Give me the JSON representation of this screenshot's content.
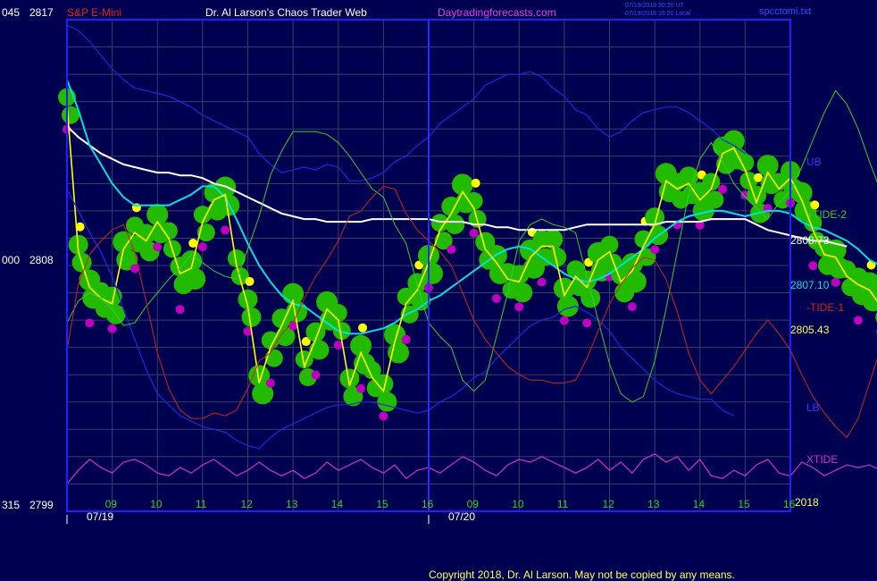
{
  "header": {
    "left_value_top": "045",
    "price_top": "2817",
    "symbol": "S&P E-Mini",
    "site": "Dr. Al Larson's Chaos Trader Web",
    "url": "Daytradingforecasts.com",
    "timestamp_ut": "07/19/2018 20:20 UT",
    "timestamp_local": "07/19/2018 16:20 Local",
    "file": "spcctomi.txt"
  },
  "footer": {
    "copyright": "Copyright 2018, Dr. Al Larson. May not be copied by any means.",
    "year": "2018"
  },
  "axis": {
    "left_mid_value": "000",
    "price_mid": "2808",
    "left_bottom_value": "315",
    "price_bottom": "2799",
    "hour_labels": [
      "09",
      "10",
      "11",
      "12",
      "13",
      "14",
      "15",
      "16",
      "09",
      "10",
      "11",
      "12",
      "13",
      "14",
      "15",
      "16"
    ],
    "date_labels": [
      "07/19",
      "07/20"
    ]
  },
  "labels": {
    "ub": "UB",
    "lb": "LB",
    "tide2": "+TIDE-2",
    "tide1": "-TIDE-1",
    "xtide": "XTIDE",
    "val_white": "2808.73",
    "val_cyan": "2807.10",
    "val_yellow": "2805.43"
  },
  "colors": {
    "background": "#000050",
    "frame": "#2020ff",
    "grid": "#3c3c6a",
    "price": "#ffff00",
    "avg_fast": "#00e0e0",
    "avg_slow": "#ffffff",
    "band": "#1a2adc",
    "tide_green": "#30d030",
    "tide_red": "#d02020",
    "xtide": "#d030d0",
    "dots_green": "#22bb00",
    "dots_magenta": "#c000c0",
    "dots_yellow": "#ffff00"
  },
  "chart_data": {
    "type": "line",
    "title": "S&P E-Mini",
    "ylim": [
      2799,
      2817
    ],
    "yticks": [
      2799,
      2808,
      2817
    ],
    "x_hour_ticks": [
      9,
      10,
      11,
      12,
      13,
      14,
      15,
      16,
      9,
      10,
      11,
      12,
      13,
      14,
      15,
      16
    ],
    "x_dates": [
      "07/19",
      "07/20"
    ],
    "time_step_hours": 0.25,
    "series": [
      {
        "name": "price",
        "color": "yellow",
        "start": "07/19 09:00",
        "values": [
          2813.9,
          2808.5,
          2807.2,
          2806.8,
          2806.6,
          2808.6,
          2809.2,
          2808.9,
          2809.6,
          2809.0,
          2807.7,
          2807.9,
          2809.6,
          2810.4,
          2810.6,
          2808.0,
          2806.5,
          2803.7,
          2805.0,
          2805.8,
          2806.7,
          2804.3,
          2805.3,
          2806.4,
          2806.0,
          2803.6,
          2804.8,
          2803.9,
          2803.4,
          2805.2,
          2806.6,
          2807.1,
          2808.1,
          2809.3,
          2809.9,
          2810.7,
          2810.1,
          2808.6,
          2808.1,
          2807.5,
          2807.4,
          2808.3,
          2808.7,
          2808.7,
          2806.9,
          2807.6,
          2807.2,
          2808.2,
          2808.5,
          2807.4,
          2807.8,
          2808.7,
          2809.5,
          2811.1,
          2810.8,
          2811.0,
          2810.4,
          2810.8,
          2812.1,
          2812.3,
          2811.5,
          2810.3,
          2811.4,
          2810.8,
          2811.2,
          2810.4,
          2809.3,
          2808.4,
          2808.3,
          2807.6,
          2807.3,
          2807.1,
          2806.5,
          2806.5,
          2807.5,
          2806.2,
          2805.8,
          2805.1,
          2806.5,
          2806.3,
          2805.4,
          2805.6,
          2805.3,
          2805.4
        ]
      },
      {
        "name": "fast average",
        "color": "cyan",
        "start": "07/19 09:00",
        "values": [
          2814.8,
          2813.7,
          2812.4,
          2811.7,
          2811.0,
          2810.5,
          2810.2,
          2810.2,
          2810.2,
          2810.2,
          2810.4,
          2810.6,
          2810.9,
          2810.9,
          2810.5,
          2809.7,
          2808.8,
          2808.0,
          2807.4,
          2806.9,
          2806.6,
          2806.5,
          2806.2,
          2805.9,
          2805.6,
          2805.5,
          2805.5,
          2805.6,
          2805.7,
          2805.9,
          2806.2,
          2806.4,
          2806.7,
          2806.9,
          2807.2,
          2807.5,
          2807.8,
          2808.1,
          2808.4,
          2808.6,
          2808.7,
          2808.6,
          2808.3,
          2808.0,
          2807.7,
          2807.5,
          2807.4,
          2807.5,
          2807.7,
          2808.0,
          2808.3,
          2808.6,
          2809.0,
          2809.3,
          2809.6,
          2809.8,
          2809.9,
          2810.0,
          2810.0,
          2809.9,
          2809.8,
          2809.9,
          2810.0,
          2810.0,
          2809.9,
          2809.6,
          2809.4,
          2809.3,
          2809.1,
          2808.9,
          2808.6,
          2808.2,
          2808.0,
          2807.6,
          2807.4,
          2807.1
        ]
      },
      {
        "name": "slow average",
        "color": "white",
        "start": "07/19 09:00",
        "values": [
          2813.1,
          2812.7,
          2812.4,
          2812.1,
          2811.9,
          2811.7,
          2811.6,
          2811.5,
          2811.4,
          2811.4,
          2811.3,
          2811.3,
          2811.2,
          2811.0,
          2810.9,
          2810.7,
          2810.5,
          2810.3,
          2810.1,
          2809.9,
          2809.8,
          2809.7,
          2809.7,
          2809.6,
          2809.6,
          2809.6,
          2809.6,
          2809.7,
          2809.7,
          2809.7,
          2809.7,
          2809.7,
          2809.7,
          2809.6,
          2809.6,
          2809.6,
          2809.5,
          2809.5,
          2809.4,
          2809.4,
          2809.3,
          2809.3,
          2809.3,
          2809.3,
          2809.3,
          2809.4,
          2809.5,
          2809.5,
          2809.5,
          2809.5,
          2809.5,
          2809.5,
          2809.5,
          2809.6,
          2809.6,
          2809.6,
          2809.6,
          2809.7,
          2809.7,
          2809.7,
          2809.7,
          2809.5,
          2809.3,
          2809.2,
          2809.1,
          2809.0,
          2808.9,
          2808.9,
          2808.8,
          2808.7
        ]
      },
      {
        "name": "upper band",
        "color": "blue",
        "start": "07/19 09:00",
        "values": [
          2816.8,
          2816.6,
          2816.2,
          2815.7,
          2815.2,
          2814.8,
          2814.5,
          2814.4,
          2814.3,
          2814.2,
          2814.0,
          2813.8,
          2813.5,
          2813.3,
          2813.1,
          2812.9,
          2812.7,
          2812.1,
          2811.7,
          2811.4,
          2811.5,
          2811.6,
          2811.5,
          2811.7,
          2811.6,
          2811.1,
          2811.1,
          2811.2,
          2811.4,
          2811.8,
          2812.0,
          2812.4,
          2812.7,
          2813.2,
          2813.5,
          2813.8,
          2814.1,
          2814.6,
          2814.8,
          2815.0,
          2815.0,
          2815.1,
          2814.9,
          2814.5,
          2814.2,
          2813.7,
          2813.5,
          2813.0,
          2812.7,
          2812.9,
          2813.3,
          2813.6,
          2813.7,
          2813.8,
          2813.8,
          2813.6,
          2813.3,
          2813.0,
          2812.6,
          2812.4,
          2812.1
        ]
      },
      {
        "name": "lower band",
        "color": "blue",
        "start": "07/19 09:00",
        "values": [
          2810.8,
          2810.0,
          2809.2,
          2808.5,
          2807.6,
          2806.4,
          2805.3,
          2804.2,
          2803.3,
          2802.9,
          2802.5,
          2802.3,
          2802.1,
          2802.0,
          2801.9,
          2801.6,
          2801.4,
          2801.3,
          2801.7,
          2802.0,
          2802.2,
          2802.4,
          2802.6,
          2802.8,
          2802.9,
          2802.9,
          2803.0,
          2803.0,
          2802.9,
          2802.8,
          2802.7,
          2802.6,
          2802.7,
          2803.0,
          2803.2,
          2803.5,
          2803.9,
          2804.1,
          2804.6,
          2805.0,
          2805.4,
          2805.8,
          2806.0,
          2806.1,
          2806.4,
          2806.5,
          2806.3,
          2806.0,
          2805.6,
          2805.0,
          2804.6,
          2804.2,
          2803.8,
          2803.5,
          2803.3,
          2803.2,
          2803.1,
          2803.1,
          2802.7,
          2802.5
        ]
      },
      {
        "name": "+TIDE-2",
        "color": "green",
        "start": "07/19 09:00",
        "values": [
          2805.9,
          2806.7,
          2807.0,
          2806.8,
          2806.4,
          2805.8,
          2805.9,
          2806.5,
          2807.0,
          2807.5,
          2807.9,
          2808.4,
          2808.1,
          2807.8,
          2807.6,
          2807.5,
          2808.6,
          2809.8,
          2811.3,
          2812.2,
          2812.9,
          2812.9,
          2812.9,
          2812.8,
          2812.5,
          2812.0,
          2811.4,
          2810.8,
          2810.5,
          2809.5,
          2808.8,
          2807.3,
          2805.9,
          2805.4,
          2805.0,
          2803.8,
          2803.4,
          2803.8,
          2805.4,
          2807.0,
          2808.9,
          2809.5,
          2809.7,
          2809.5,
          2809.4,
          2809.2,
          2807.6,
          2806.0,
          2804.4,
          2803.3,
          2803.0,
          2803.2,
          2804.5,
          2806.4,
          2808.5,
          2810.6,
          2811.9,
          2812.5,
          2811.8,
          2811.0,
          2810.5,
          2810.1,
          2809.7,
          2810.3,
          2810.7,
          2811.6,
          2812.6,
          2813.6,
          2814.4,
          2813.9,
          2813.0,
          2811.8,
          2810.7,
          2809.5,
          2808.5,
          2808.3,
          2808.2,
          2808.0,
          2808.8,
          2809.2,
          2809.7,
          2809.7,
          2809.8
        ]
      },
      {
        "name": "-TIDE-1",
        "color": "red",
        "start": "07/19 09:00",
        "values": [
          2804.9,
          2807.3,
          2808.4,
          2808.9,
          2809.3,
          2809.5,
          2808.5,
          2806.7,
          2804.8,
          2803.5,
          2802.7,
          2802.4,
          2802.4,
          2802.6,
          2802.5,
          2802.7,
          2803.5,
          2804.5,
          2804.8,
          2805.5,
          2805.9,
          2806.8,
          2807.6,
          2808.2,
          2808.9,
          2809.8,
          2810.0,
          2810.5,
          2810.9,
          2810.8,
          2809.9,
          2809.3,
          2808.9,
          2808.5,
          2808.0,
          2807.0,
          2806.0,
          2805.3,
          2804.8,
          2804.3,
          2804.0,
          2803.8,
          2803.8,
          2803.7,
          2803.7,
          2803.8,
          2804.6,
          2805.6,
          2806.6,
          2807.3,
          2807.9,
          2808.3,
          2808.2,
          2807.5,
          2806.3,
          2804.8,
          2803.8,
          2803.3,
          2803.8,
          2804.3,
          2804.9,
          2805.5,
          2806.0,
          2805.5,
          2804.9,
          2804.0,
          2803.2,
          2802.6,
          2802.1,
          2801.7,
          2802.4,
          2803.7,
          2805.0,
          2806.4,
          2807.4,
          2807.8,
          2808.0,
          2808.2,
          2807.8,
          2807.4,
          2807.1,
          2807.0,
          2806.8
        ]
      },
      {
        "name": "XTIDE",
        "color": "magenta",
        "start": "07/19 09:00",
        "values": [
          2800.0,
          2800.5,
          2800.9,
          2800.6,
          2800.4,
          2800.8,
          2800.9,
          2800.7,
          2800.4,
          2800.3,
          2800.6,
          2800.4,
          2800.7,
          2800.9,
          2800.6,
          2800.3,
          2800.5,
          2800.8,
          2800.5,
          2800.3,
          2800.5,
          2800.2,
          2800.4,
          2800.8,
          2800.5,
          2800.7,
          2800.9,
          2800.6,
          2800.4,
          2800.7,
          2800.2,
          2800.5,
          2800.6,
          2800.4,
          2800.7,
          2801.0,
          2800.8,
          2800.5,
          2800.3,
          2800.7,
          2800.9,
          2800.8,
          2801.0,
          2800.8,
          2800.6,
          2800.4,
          2800.6,
          2800.9,
          2800.5,
          2800.8,
          2800.4,
          2800.9,
          2801.1,
          2800.8,
          2801.0,
          2800.5,
          2800.9,
          2800.3,
          2800.2,
          2800.5,
          2800.3,
          2800.7,
          2800.9,
          2800.4,
          2800.3,
          2800.8,
          2800.6,
          2800.3,
          2800.5,
          2800.7,
          2800.6,
          2800.7,
          2800.5,
          2800.9,
          2801.1,
          2800.6,
          2800.9,
          2801.2,
          2800.7,
          2800.3,
          2800.6,
          2801.0,
          2800.5,
          2800.8
        ]
      }
    ]
  }
}
